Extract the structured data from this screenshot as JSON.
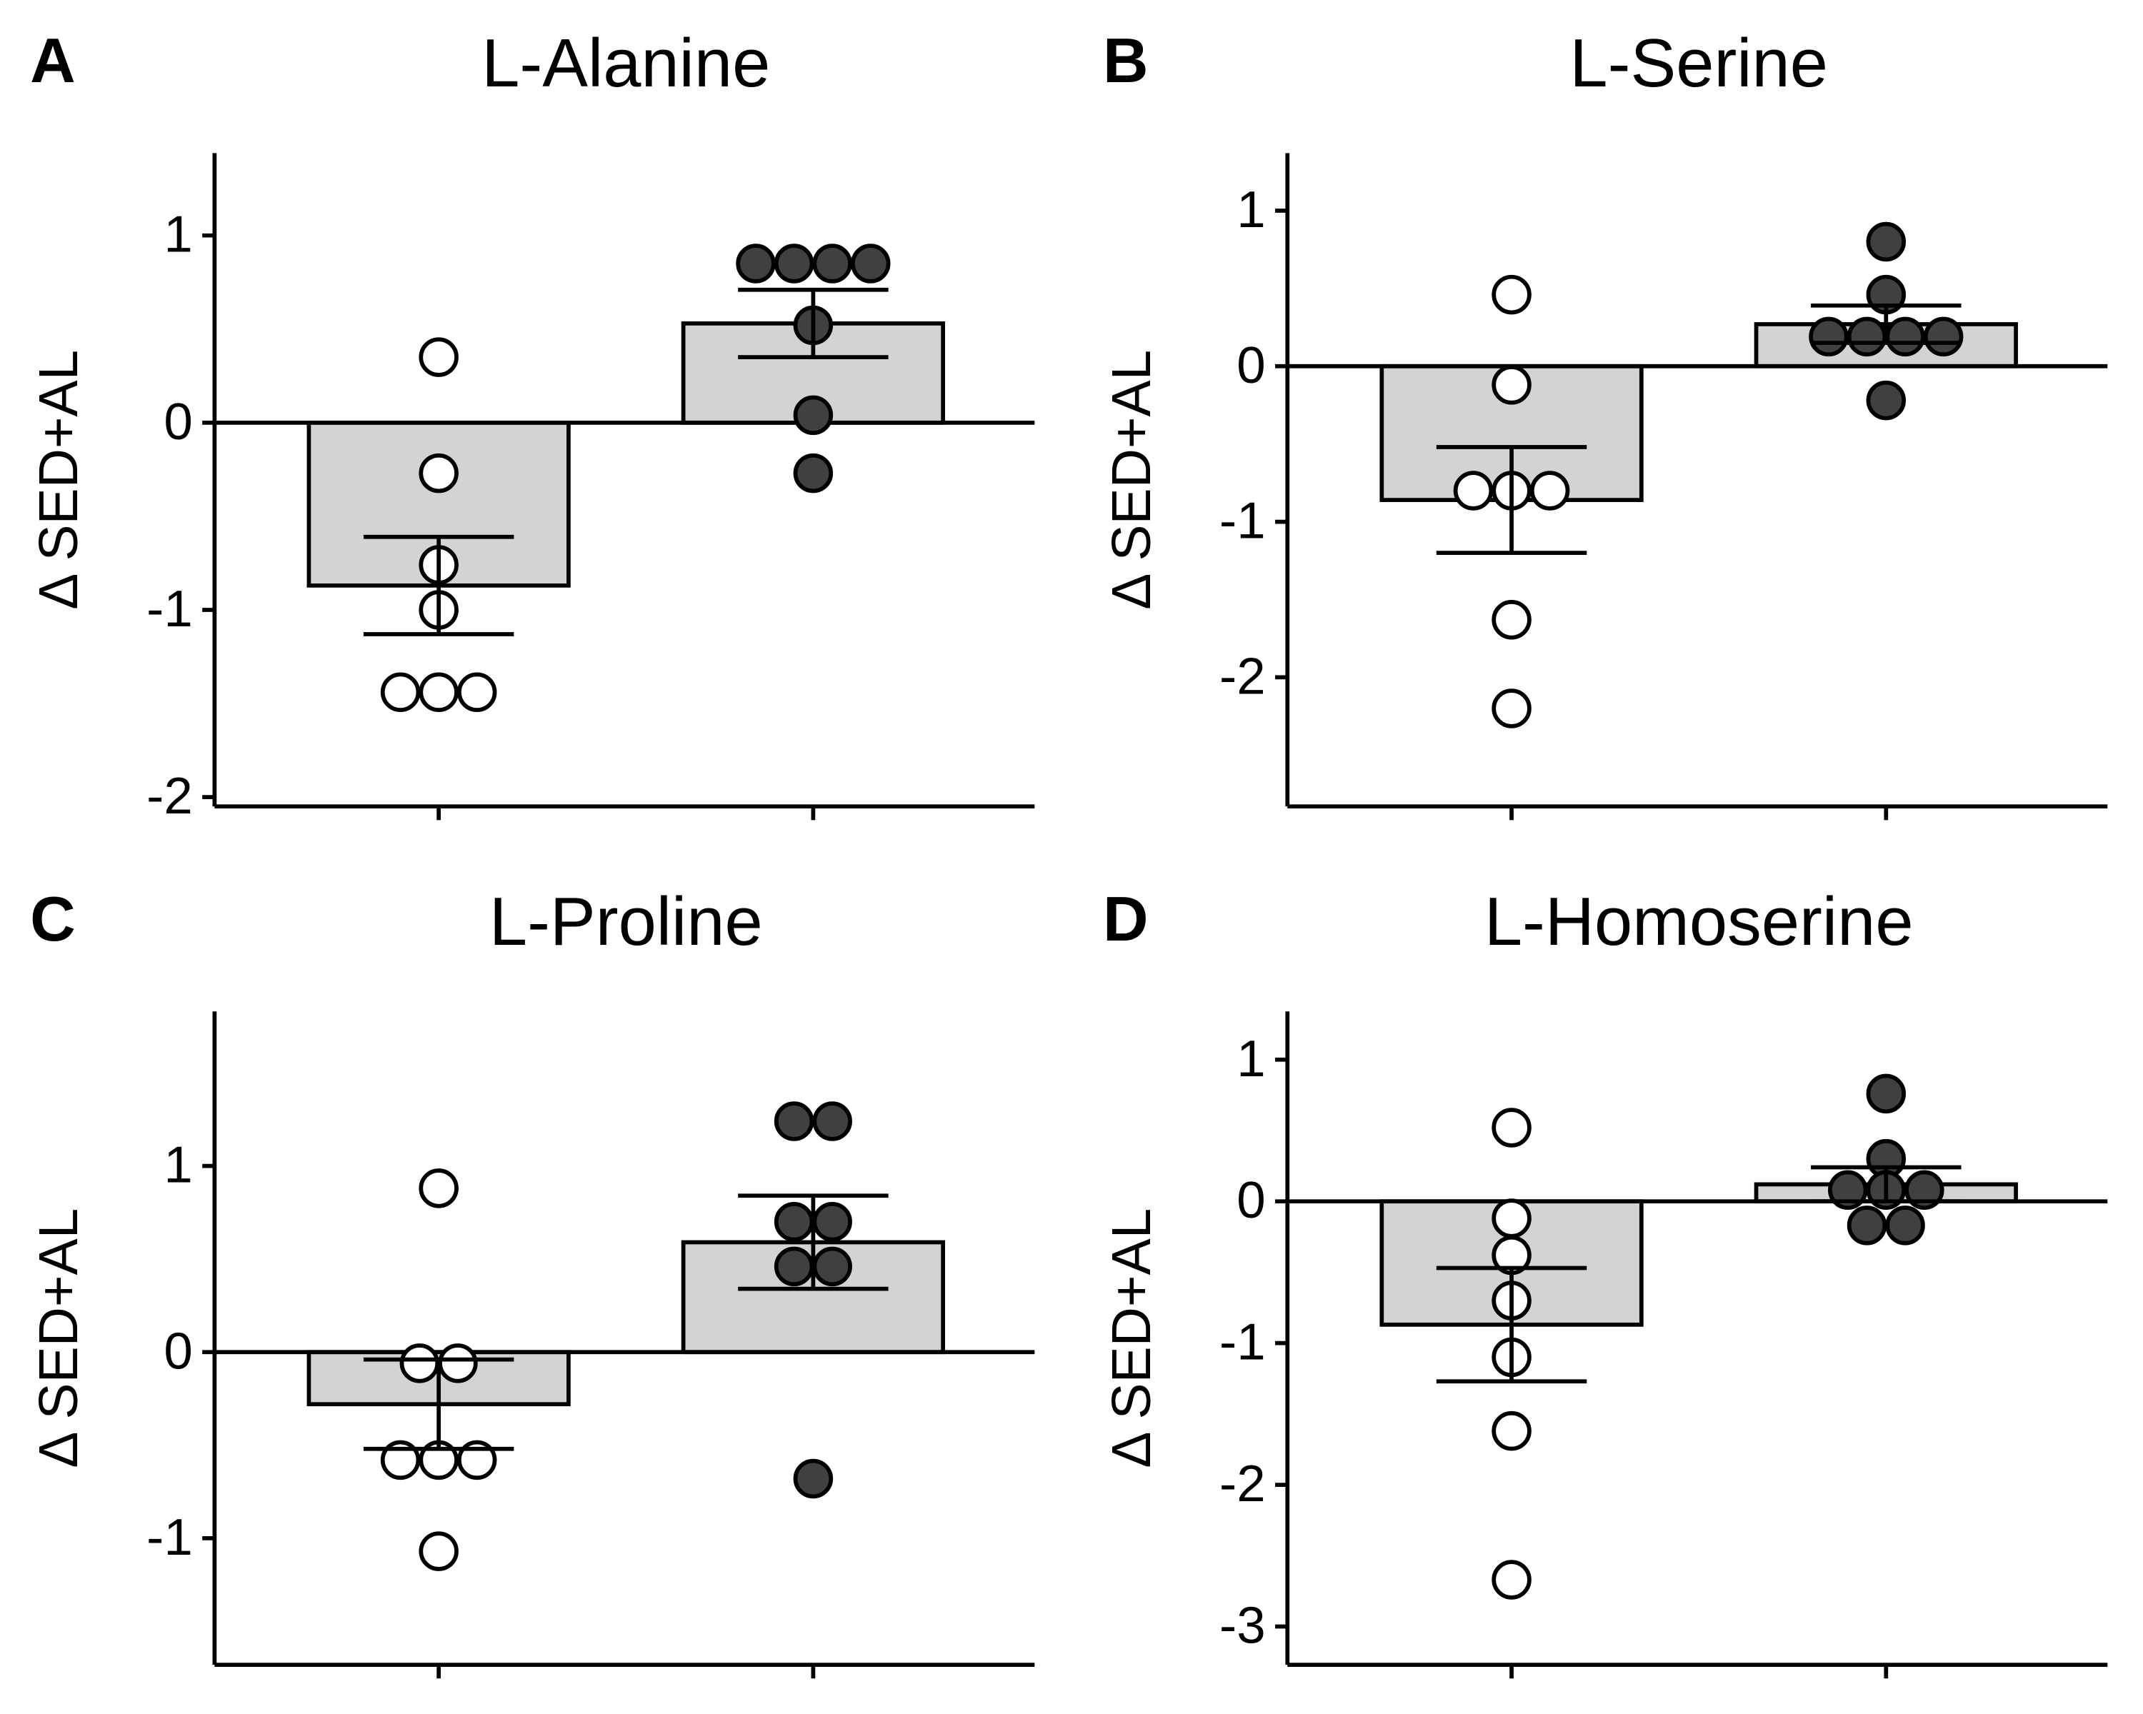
{
  "chart_data": [
    {
      "type": "bar",
      "panel": "A",
      "title": "L-Alanine",
      "ylabel": "Δ SED+AL",
      "categories": [
        null,
        null
      ],
      "values": [
        -0.87,
        0.53
      ],
      "errors": [
        0.26,
        0.18
      ],
      "points": [
        [
          0.35,
          -0.27,
          -0.76,
          -1.0,
          -1.44,
          -1.44,
          -1.44
        ],
        [
          0.85,
          0.85,
          0.85,
          0.85,
          0.52,
          0.04,
          -0.27
        ]
      ],
      "color": "#d3d3d3",
      "point_colors": [
        "#ffffff",
        "#404040"
      ],
      "ylim": [
        -2.05,
        1.44
      ],
      "yticks": [
        -2,
        -1,
        0,
        1
      ]
    },
    {
      "type": "bar",
      "panel": "B",
      "title": "L-Serine",
      "ylabel": "Δ SED+AL",
      "categories": [
        null,
        null
      ],
      "values": [
        -0.86,
        0.27
      ],
      "errors": [
        0.34,
        0.12
      ],
      "points": [
        [
          0.46,
          -0.12,
          -0.8,
          -0.8,
          -0.8,
          -1.63,
          -2.2
        ],
        [
          0.8,
          0.46,
          0.19,
          0.19,
          0.19,
          0.19,
          -0.22
        ]
      ],
      "color": "#d3d3d3",
      "point_colors": [
        "#ffffff",
        "#404040"
      ],
      "ylim": [
        -2.83,
        1.37
      ],
      "yticks": [
        -2,
        -1,
        0,
        1
      ]
    },
    {
      "type": "bar",
      "panel": "C",
      "title": "L-Proline",
      "ylabel": "Δ SED+AL",
      "categories": [
        null,
        null
      ],
      "values": [
        -0.28,
        0.59
      ],
      "errors": [
        0.24,
        0.25
      ],
      "points": [
        [
          0.88,
          -0.06,
          -0.06,
          -0.58,
          -0.58,
          -0.58,
          -1.07
        ],
        [
          1.24,
          1.24,
          0.7,
          0.7,
          0.46,
          0.46,
          -0.68
        ]
      ],
      "color": "#d3d3d3",
      "point_colors": [
        "#ffffff",
        "#404040"
      ],
      "ylim": [
        -1.68,
        1.83
      ],
      "yticks": [
        -1,
        0,
        1
      ]
    },
    {
      "type": "bar",
      "panel": "D",
      "title": "L-Homoserine",
      "ylabel": "Δ SED+AL",
      "categories": [
        null,
        null
      ],
      "values": [
        -0.87,
        0.12
      ],
      "errors": [
        0.4,
        0.12
      ],
      "points": [
        [
          0.52,
          -0.12,
          -0.38,
          -0.7,
          -1.1,
          -1.62,
          -2.67
        ],
        [
          0.76,
          0.3,
          0.08,
          0.08,
          0.08,
          -0.17,
          -0.17
        ]
      ],
      "color": "#d3d3d3",
      "point_colors": [
        "#ffffff",
        "#404040"
      ],
      "ylim": [
        -3.27,
        1.34
      ],
      "yticks": [
        -3,
        -2,
        -1,
        0,
        1
      ]
    }
  ]
}
